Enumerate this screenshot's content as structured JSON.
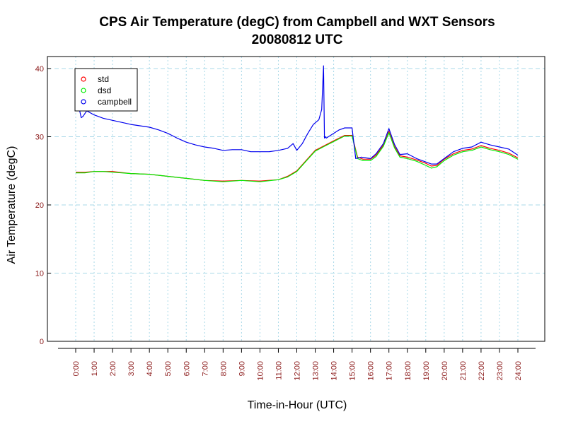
{
  "chart_data": {
    "type": "line",
    "title": "CPS Air Temperature (degC) from Campbell and WXT Sensors",
    "subtitle": "20080812  UTC",
    "xlabel": "Time-in-Hour (UTC)",
    "ylabel": "Air Temperature (degC)",
    "xlim": [
      0,
      24
    ],
    "ylim": [
      0,
      40
    ],
    "x_ticks": [
      0,
      1,
      2,
      3,
      4,
      5,
      6,
      7,
      8,
      9,
      10,
      11,
      12,
      13,
      14,
      15,
      16,
      17,
      18,
      19,
      20,
      21,
      22,
      23,
      24
    ],
    "x_tick_labels": [
      "0:00",
      "1:00",
      "2:00",
      "3:00",
      "4:00",
      "5:00",
      "6:00",
      "7:00",
      "8:00",
      "9:00",
      "10:00",
      "11:00",
      "12:00",
      "13:00",
      "14:00",
      "15:00",
      "16:00",
      "17:00",
      "18:00",
      "19:00",
      "20:00",
      "21:00",
      "22:00",
      "23:00",
      "24:00"
    ],
    "y_ticks": [
      0,
      10,
      20,
      30,
      40
    ],
    "y_tick_labels": [
      "0",
      "10",
      "20",
      "30",
      "40"
    ],
    "grid": true,
    "legend_position": "top-left",
    "series": [
      {
        "name": "std",
        "color": "#ff0000",
        "x": [
          0,
          0.5,
          1,
          1.5,
          2,
          3,
          4,
          5,
          6,
          7,
          8,
          9,
          10,
          11,
          11.5,
          12,
          12.5,
          13,
          13.5,
          14,
          14.3,
          14.6,
          15,
          15.3,
          15.6,
          16,
          16.3,
          16.7,
          17,
          17.3,
          17.6,
          18,
          18.5,
          19,
          19.3,
          19.6,
          20,
          20.5,
          21,
          21.5,
          22,
          22.5,
          23,
          23.5,
          24
        ],
        "values": [
          24.8,
          24.8,
          24.9,
          24.9,
          24.9,
          24.6,
          24.5,
          24.2,
          23.9,
          23.6,
          23.5,
          23.6,
          23.5,
          23.7,
          24.2,
          25.0,
          26.5,
          28.0,
          28.7,
          29.4,
          29.8,
          30.2,
          30.2,
          27.0,
          26.7,
          26.7,
          27.3,
          28.8,
          30.8,
          28.6,
          27.2,
          27.0,
          26.6,
          26.1,
          25.7,
          25.8,
          26.7,
          27.5,
          28.0,
          28.2,
          28.7,
          28.3,
          28.0,
          27.6,
          26.9
        ]
      },
      {
        "name": "dsd",
        "color": "#00ee00",
        "x": [
          0,
          0.5,
          1,
          1.5,
          2,
          3,
          4,
          5,
          6,
          7,
          8,
          9,
          10,
          11,
          11.5,
          12,
          12.5,
          13,
          13.5,
          14,
          14.3,
          14.6,
          15,
          15.3,
          15.6,
          16,
          16.3,
          16.7,
          17,
          17.3,
          17.6,
          18,
          18.5,
          19,
          19.3,
          19.6,
          20,
          20.5,
          21,
          21.5,
          22,
          22.5,
          23,
          23.5,
          24
        ],
        "values": [
          24.7,
          24.7,
          24.9,
          24.9,
          24.8,
          24.6,
          24.5,
          24.2,
          23.9,
          23.6,
          23.4,
          23.6,
          23.4,
          23.7,
          24.1,
          24.9,
          26.4,
          27.9,
          28.6,
          29.3,
          29.7,
          30.1,
          30.1,
          26.8,
          26.5,
          26.5,
          27.1,
          28.6,
          30.6,
          28.4,
          27.0,
          26.8,
          26.4,
          25.8,
          25.4,
          25.6,
          26.5,
          27.3,
          27.8,
          28.0,
          28.5,
          28.1,
          27.8,
          27.4,
          26.7
        ]
      },
      {
        "name": "campbell",
        "color": "#0000ee",
        "x": [
          0,
          0.2,
          0.3,
          0.4,
          0.6,
          1,
          1.5,
          2,
          3,
          4,
          4.5,
          5,
          5.5,
          6,
          6.5,
          7,
          7.5,
          8,
          8.5,
          9,
          9.5,
          10,
          10.5,
          11,
          11.5,
          11.8,
          12,
          12.3,
          12.6,
          12.9,
          13.2,
          13.35,
          13.45,
          13.5,
          13.55,
          13.6,
          14,
          14.3,
          14.6,
          15,
          15.2,
          15.5,
          16,
          16.3,
          16.7,
          17,
          17.3,
          17.6,
          18,
          18.5,
          19,
          19.3,
          19.6,
          20,
          20.5,
          21,
          21.5,
          22,
          22.5,
          23,
          23.5,
          24
        ],
        "values": [
          34.5,
          34.0,
          32.8,
          33.0,
          33.8,
          33.2,
          32.7,
          32.4,
          31.8,
          31.4,
          31.0,
          30.5,
          29.8,
          29.2,
          28.8,
          28.5,
          28.3,
          28.0,
          28.1,
          28.1,
          27.8,
          27.8,
          27.8,
          28.0,
          28.3,
          29.0,
          28.0,
          29.0,
          30.5,
          31.8,
          32.5,
          34.0,
          40.4,
          29.8,
          30.0,
          29.8,
          30.5,
          31.0,
          31.3,
          31.3,
          26.8,
          27.0,
          26.8,
          27.5,
          29.0,
          31.2,
          28.9,
          27.4,
          27.5,
          26.8,
          26.3,
          26.0,
          26.0,
          26.8,
          27.8,
          28.3,
          28.5,
          29.2,
          28.8,
          28.5,
          28.2,
          27.3
        ]
      }
    ]
  }
}
